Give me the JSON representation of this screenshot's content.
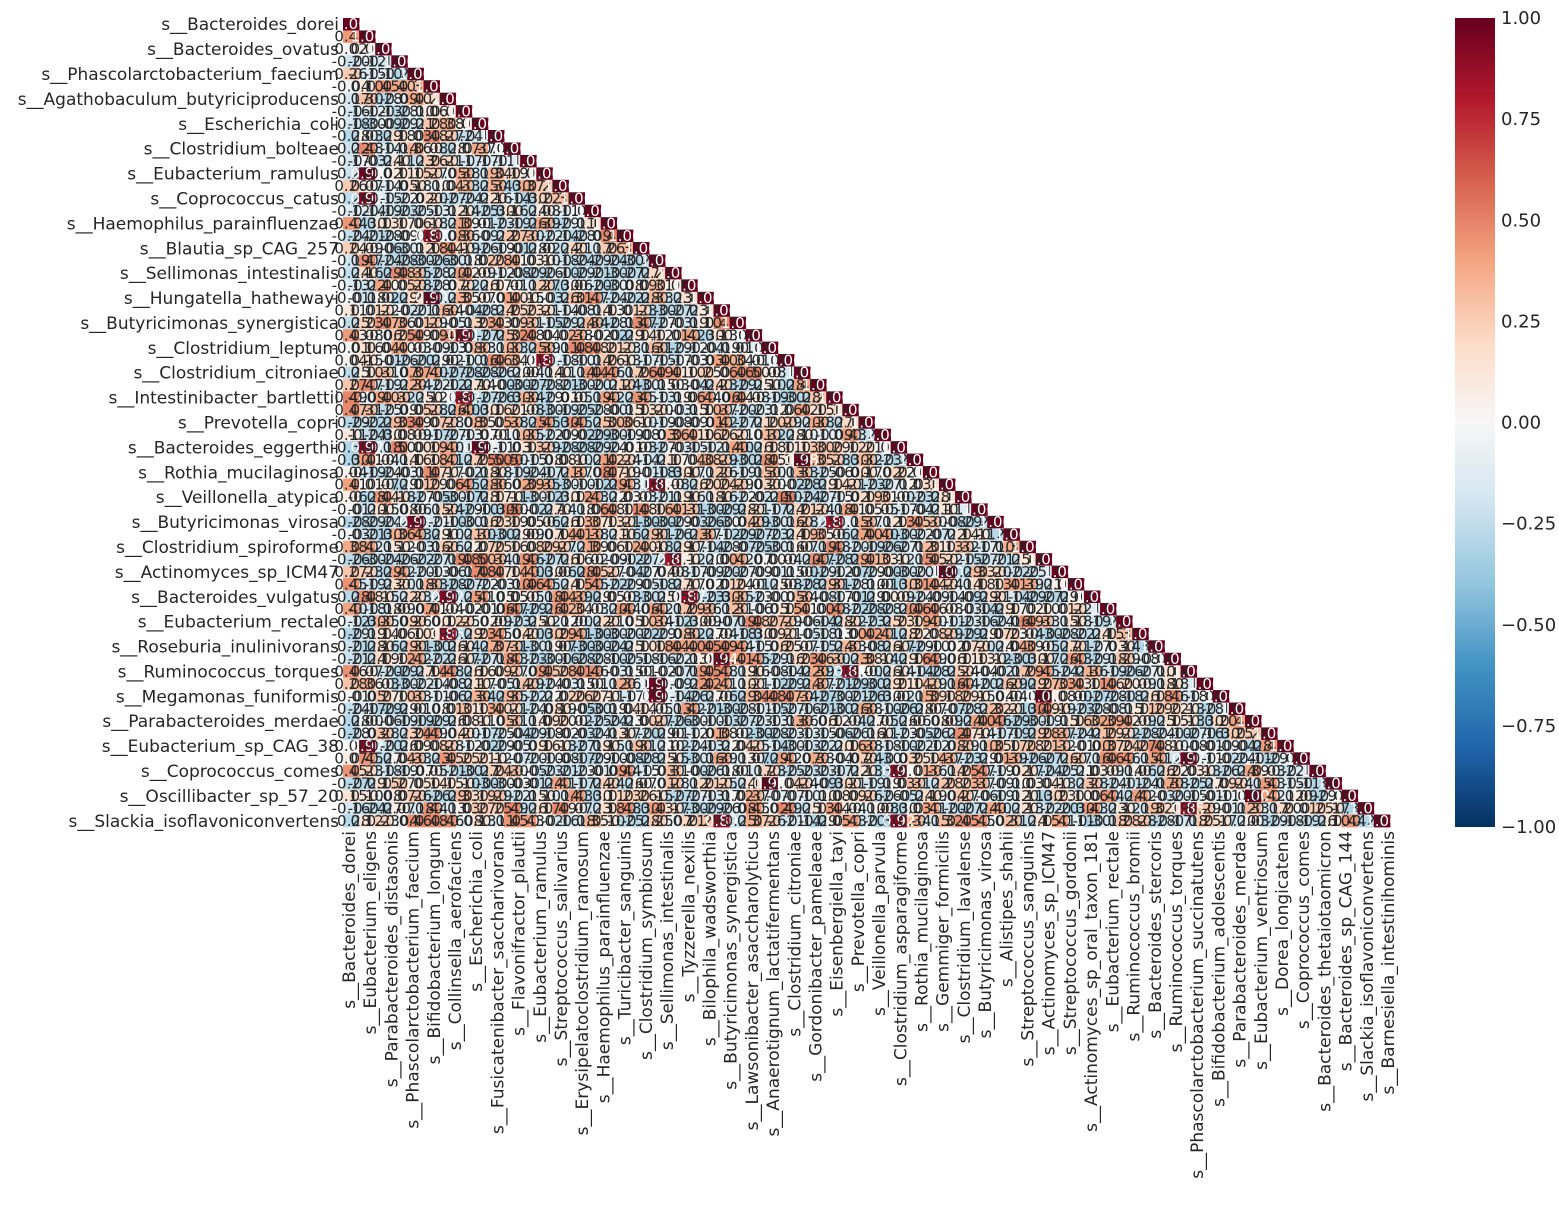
{
  "chart_data": {
    "type": "heatmap",
    "subtype": "lower-triangle correlation matrix (diagonal kept, upper triangle masked)",
    "n": 65,
    "y_tick_labels": [
      "s__Bacteroides_dorei",
      "s__Bacteroides_ovatus",
      "s__Phascolarctobacterium_faecium",
      "s__Agathobaculum_butyriciproducens",
      "s__Escherichia_coli",
      "s__Clostridium_bolteae",
      "s__Eubacterium_ramulus",
      "s__Coprococcus_catus",
      "s__Haemophilus_parainfluenzae",
      "s__Blautia_sp_CAG_257",
      "s__Sellimonas_intestinalis",
      "s__Hungatella_hathewayi",
      "s__Butyricimonas_synergistica",
      "s__Clostridium_leptum",
      "s__Clostridium_citroniae",
      "s__Intestinibacter_bartlettii",
      "s__Prevotella_copri",
      "s__Bacteroides_eggerthii",
      "s__Rothia_mucilaginosa",
      "s__Veillonella_atypica",
      "s__Butyricimonas_virosa",
      "s__Clostridium_spiroforme",
      "s__Actinomyces_sp_ICM47",
      "s__Bacteroides_vulgatus",
      "s__Eubacterium_rectale",
      "s__Roseburia_inulinivorans",
      "s__Ruminococcus_torques",
      "s__Megamonas_funiformis",
      "s__Parabacteroides_merdae",
      "s__Eubacterium_sp_CAG_38",
      "s__Coprococcus_comes",
      "s__Oscillibacter_sp_57_20",
      "s__Slackia_isoflavoniconvertens"
    ],
    "x_tick_labels": [
      "s__Bacteroides_dorei",
      "s__Eubacterium_eligens",
      "s__Parabacteroides_distasonis",
      "s__Phascolarctobacterium_faecium",
      "s__Bifidobacterium_longum",
      "s__Collinsella_aerofaciens",
      "s__Escherichia_coli",
      "s__Fusicatenibacter_saccharivorans",
      "s__Flavonifractor_plautii",
      "s__Eubacterium_ramulus",
      "s__Streptococcus_salivarius",
      "s__Erysipelatoclostridium_ramosum",
      "s__Haemophilus_parainfluenzae",
      "s__Turicibacter_sanguinis",
      "s__Clostridium_symbiosum",
      "s__Sellimonas_intestinalis",
      "s__Tyzzerella_nexilis",
      "s__Bilophila_wadsworthia",
      "s__Butyricimonas_synergistica",
      "s__Lawsonibacter_asaccharolyticus",
      "s__Anaerotignum_lactatifermentans",
      "s__Clostridium_citroniae",
      "s__Gordonibacter_pamelaeae",
      "s__Eisenbergiella_tayi",
      "s__Prevotella_copri",
      "s__Veillonella_parvula",
      "s__Clostridium_asparagiforme",
      "s__Rothia_mucilaginosa",
      "s__Gemmiger_formicilis",
      "s__Clostridium_lavalense",
      "s__Butyricimonas_virosa",
      "s__Alistipes_shahii",
      "s__Streptococcus_sanguinis",
      "s__Actinomyces_sp_ICM47",
      "s__Streptococcus_gordonii",
      "s__Actinomyces_sp_oral_taxon_181",
      "s__Eubacterium_rectale",
      "s__Ruminococcus_bromii",
      "s__Bacteroides_stercoris",
      "s__Ruminococcus_torques",
      "s__Phascolarctobacterium_succinatutens",
      "s__Bifidobacterium_adolescentis",
      "s__Parabacteroides_merdae",
      "s__Eubacterium_ventriosum",
      "s__Dorea_longicatena",
      "s__Coprococcus_comes",
      "s__Bacteroides_thetaiotaomicron",
      "s__Bacteroides_sp_CAG_144",
      "s__Slackia_isoflavoniconvertens",
      "s__Barnesiella_intestinihominis"
    ],
    "colorbar": {
      "cmap": "RdBu_r",
      "vmin": -1.0,
      "vmax": 1.0,
      "ticks": [
        "1.00",
        "0.75",
        "0.50",
        "0.25",
        "0.00",
        "−0.25",
        "−0.50",
        "−0.75",
        "−1.00"
      ],
      "tick_values": [
        1.0,
        0.75,
        0.5,
        0.25,
        0.0,
        -0.25,
        -0.5,
        -0.75,
        -1.0
      ],
      "colors": [
        "#053061",
        "#2166ac",
        "#4393c3",
        "#92c5de",
        "#d1e5f0",
        "#f7f7f7",
        "#fddbc7",
        "#f4a582",
        "#d6604d",
        "#b2182b",
        "#67001f"
      ]
    },
    "diagonal_value": 1.0,
    "cell_annotations": "each cell shows its coefficient to 2 decimals; labels overlap and are illegible at this resolution",
    "dominant_value_range": [
      -0.3,
      0.5
    ]
  }
}
